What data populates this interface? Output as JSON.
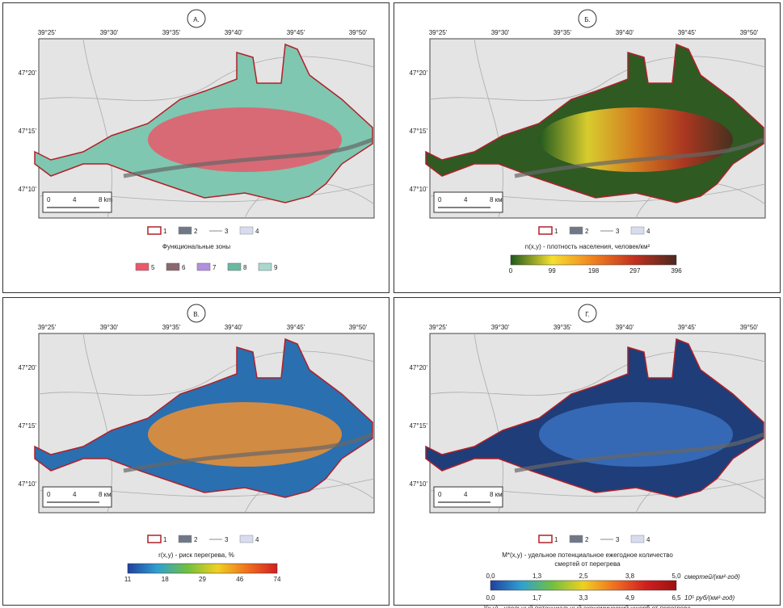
{
  "panels": [
    {
      "label": "А.",
      "lon_ticks": [
        "39°25'",
        "39°30'",
        "39°35'",
        "39°40'",
        "39°45'",
        "39°50'"
      ],
      "lat_ticks": [
        "47°20'",
        "47°15'",
        "47°10'"
      ],
      "scale": [
        "0",
        "4",
        "8 km"
      ],
      "legend": [
        "1",
        "2",
        "3",
        "4"
      ],
      "title": "Функциональные зоны",
      "zones": [
        "5",
        "6",
        "7",
        "8",
        "9"
      ]
    },
    {
      "label": "Б.",
      "lon_ticks": [
        "39°25'",
        "39°30'",
        "39°35'",
        "39°40'",
        "39°45'",
        "39°50'"
      ],
      "lat_ticks": [
        "47°20'",
        "47°15'",
        "47°10'"
      ],
      "scale": [
        "0",
        "4",
        "8 км"
      ],
      "legend": [
        "1",
        "2",
        "3",
        "4"
      ],
      "title": "n(x,y) - плотность населения, человек/км²",
      "colorbar": [
        "0",
        "99",
        "198",
        "297",
        "396"
      ]
    },
    {
      "label": "В.",
      "lon_ticks": [
        "39°25'",
        "39°30'",
        "39°35'",
        "39°40'",
        "39°45'",
        "39°50'"
      ],
      "lat_ticks": [
        "47°20'",
        "47°15'",
        "47°10'"
      ],
      "scale": [
        "0",
        "4",
        "8 км"
      ],
      "legend": [
        "1",
        "2",
        "3",
        "4"
      ],
      "title": "r(x,y) - риск перегрева, %",
      "colorbar": [
        "11",
        "18",
        "29",
        "46",
        "74"
      ]
    },
    {
      "label": "Г.",
      "lon_ticks": [
        "39°25'",
        "39°30'",
        "39°35'",
        "39°40'",
        "39°45'",
        "39°50'"
      ],
      "lat_ticks": [
        "47°20'",
        "47°15'",
        "47°10'"
      ],
      "scale": [
        "0",
        "4",
        "8 км"
      ],
      "legend": [
        "1",
        "2",
        "3",
        "4"
      ],
      "title": "M*(x,y) - удельное потенциальное ежегодное количество",
      "title2": "смертей от перегрева",
      "colorbar": [
        "0,0",
        "1,3",
        "2,5",
        "3,8",
        "5,0"
      ],
      "unit": "смертей/(км²·год)",
      "colorbar2": [
        "0,0",
        "1,7",
        "3,3",
        "4,9",
        "6,5"
      ],
      "unit2": "10⁵ руб/(км²·год)",
      "title3": "l(x,y) - удельный потенциальный экономический ущерб от перегрева"
    }
  ]
}
